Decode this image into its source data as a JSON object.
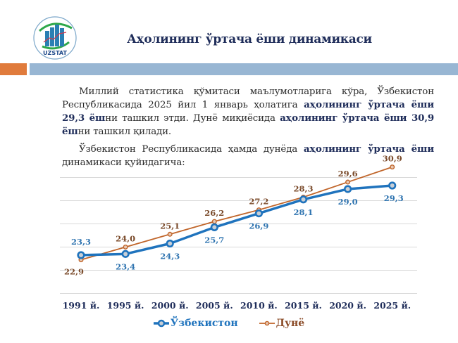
{
  "header": {
    "logo_text": "UZSTAT",
    "title": "Аҳолининг ўртача ёши динамикаси"
  },
  "colors": {
    "accent_orange": "#e07b3c",
    "accent_blue_bar": "#98b6d3",
    "title_navy": "#1f2d5a",
    "series_uzbekistan": "#1f73bd",
    "series_world": "#c0652a",
    "label_world": "#7a4a2a"
  },
  "paragraphs": {
    "p1": {
      "part1": "Миллий статистика қўмитаси маълумотларига кўра, Ўзбекистон Республикасида 2025 йил 1 январь ҳолатига ",
      "bold1": "аҳолининг ўртача ёши 29,3 ёш",
      "part2": "ни ташкил этди. Дунё миқиёсида ",
      "bold2": "аҳолининг ўртача ёши 30,9 ёш",
      "part3": "ни ташкил қилади."
    },
    "p2": {
      "part1": "Ўзбекистон Республикасида ҳамда дунёда ",
      "bold1": "аҳолининг ўртача ёши",
      "part2": " динамикаси қуйидагича:"
    }
  },
  "chart_data": {
    "type": "line",
    "title": "Аҳолининг ўртача ёши динамикаси",
    "categories": [
      "1991 й.",
      "1995 й.",
      "2000 й.",
      "2005 й.",
      "2010 й.",
      "2015 й.",
      "2020 й.",
      "2025 й."
    ],
    "series": [
      {
        "name": "Ўзбекистон",
        "values": [
          23.3,
          23.4,
          24.3,
          25.7,
          26.9,
          28.1,
          29.0,
          29.3
        ],
        "labels": [
          "23,3",
          "23,4",
          "24,3",
          "25,7",
          "26,9",
          "28,1",
          "29,0",
          "29,3"
        ]
      },
      {
        "name": "Дунё",
        "values": [
          22.9,
          24.0,
          25.1,
          26.2,
          27.2,
          28.3,
          29.6,
          30.9
        ],
        "labels": [
          "22,9",
          "24,0",
          "25,1",
          "26,2",
          "27,2",
          "28,3",
          "29,6",
          "30,9"
        ]
      }
    ],
    "xlabel": "",
    "ylabel": "",
    "ylim": [
      20,
      32
    ],
    "grid": true,
    "y_axis_visible": false,
    "legend_position": "bottom"
  },
  "legend": {
    "items": [
      {
        "label": "Ўзбекистон"
      },
      {
        "label": "Дунё"
      }
    ]
  }
}
